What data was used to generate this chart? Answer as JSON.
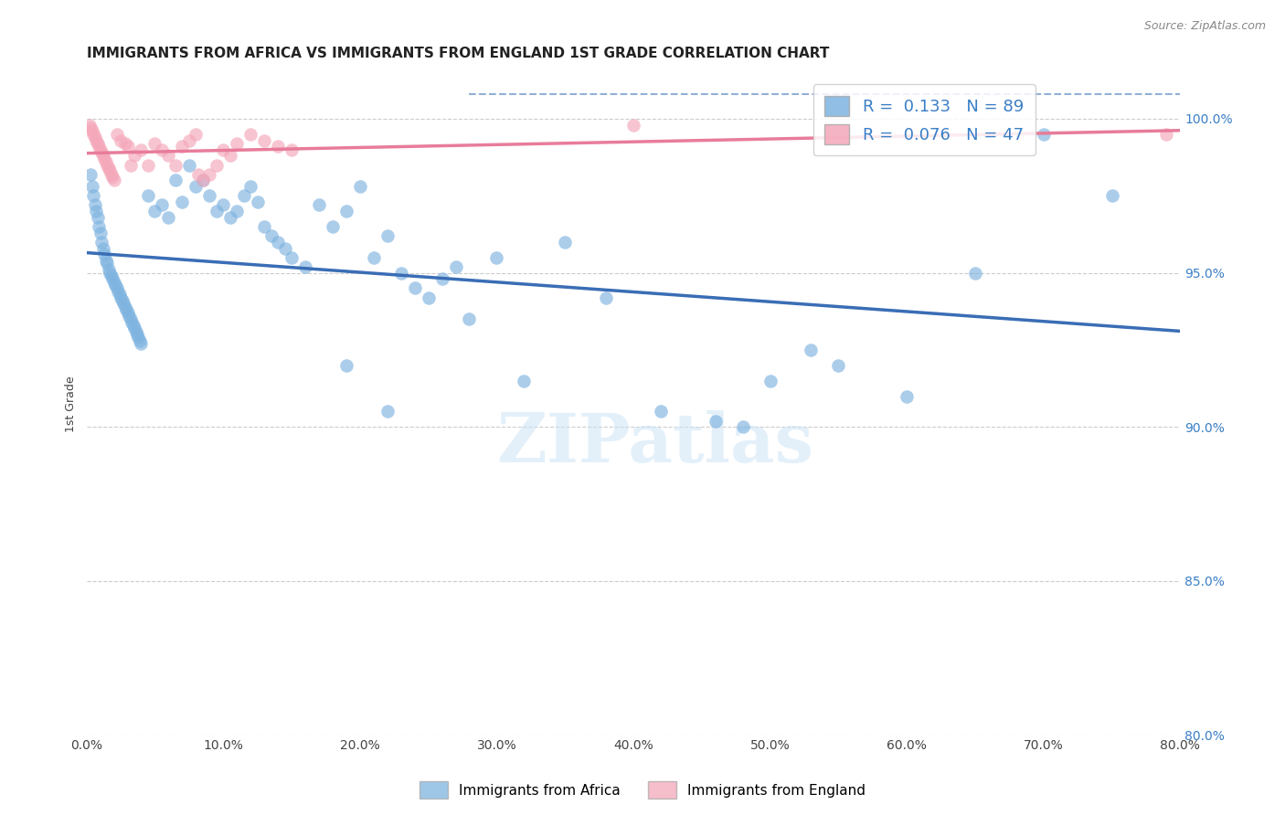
{
  "title": "IMMIGRANTS FROM AFRICA VS IMMIGRANTS FROM ENGLAND 1ST GRADE CORRELATION CHART",
  "source": "Source: ZipAtlas.com",
  "ylabel_left": "1st Grade",
  "x_tick_labels": [
    "0.0%",
    "10.0%",
    "20.0%",
    "30.0%",
    "40.0%",
    "50.0%",
    "60.0%",
    "70.0%",
    "80.0%"
  ],
  "y_tick_labels_right": [
    "100.0%",
    "95.0%",
    "90.0%",
    "85.0%",
    "80.0%"
  ],
  "xlim": [
    0.0,
    80.0
  ],
  "ylim": [
    80.0,
    101.5
  ],
  "legend_r_africa": "0.133",
  "legend_n_africa": "89",
  "legend_r_england": "0.076",
  "legend_n_england": "47",
  "legend_label_africa": "Immigrants from Africa",
  "legend_label_england": "Immigrants from England",
  "africa_color": "#7EB3E0",
  "england_color": "#F4A7B9",
  "africa_line_color": "#3A6DB5",
  "england_line_color": "#E87C9A",
  "title_fontsize": 11,
  "watermark_text": "ZIPatlas",
  "africa_x": [
    0.3,
    0.4,
    0.5,
    0.6,
    0.7,
    0.8,
    0.9,
    1.0,
    1.1,
    1.2,
    1.3,
    1.4,
    1.5,
    1.6,
    1.7,
    1.8,
    1.9,
    2.0,
    2.1,
    2.2,
    2.3,
    2.4,
    2.5,
    2.6,
    2.7,
    2.8,
    2.9,
    3.0,
    3.1,
    3.2,
    3.3,
    3.4,
    3.5,
    3.6,
    3.7,
    3.8,
    3.9,
    4.0,
    4.5,
    5.0,
    5.5,
    6.0,
    6.5,
    7.0,
    7.5,
    8.0,
    8.5,
    9.0,
    9.5,
    10.0,
    10.5,
    11.0,
    11.5,
    12.0,
    12.5,
    13.0,
    13.5,
    14.0,
    14.5,
    15.0,
    16.0,
    17.0,
    18.0,
    19.0,
    20.0,
    21.0,
    22.0,
    23.0,
    24.0,
    25.0,
    26.0,
    27.0,
    28.0,
    30.0,
    32.0,
    35.0,
    38.0,
    42.0,
    46.0,
    50.0,
    55.0,
    60.0,
    65.0,
    70.0,
    75.0,
    53.0,
    48.0,
    22.0,
    19.0
  ],
  "africa_y": [
    98.2,
    97.8,
    97.5,
    97.2,
    97.0,
    96.8,
    96.5,
    96.3,
    96.0,
    95.8,
    95.6,
    95.4,
    95.3,
    95.1,
    95.0,
    94.9,
    94.8,
    94.7,
    94.6,
    94.5,
    94.4,
    94.3,
    94.2,
    94.1,
    94.0,
    93.9,
    93.8,
    93.7,
    93.6,
    93.5,
    93.4,
    93.3,
    93.2,
    93.1,
    93.0,
    92.9,
    92.8,
    92.7,
    97.5,
    97.0,
    97.2,
    96.8,
    98.0,
    97.3,
    98.5,
    97.8,
    98.0,
    97.5,
    97.0,
    97.2,
    96.8,
    97.0,
    97.5,
    97.8,
    97.3,
    96.5,
    96.2,
    96.0,
    95.8,
    95.5,
    95.2,
    97.2,
    96.5,
    97.0,
    97.8,
    95.5,
    96.2,
    95.0,
    94.5,
    94.2,
    94.8,
    95.2,
    93.5,
    95.5,
    91.5,
    96.0,
    94.2,
    90.5,
    90.2,
    91.5,
    92.0,
    91.0,
    95.0,
    99.5,
    97.5,
    92.5,
    90.0,
    90.5,
    92.0
  ],
  "england_x": [
    0.2,
    0.3,
    0.4,
    0.5,
    0.6,
    0.7,
    0.8,
    0.9,
    1.0,
    1.1,
    1.2,
    1.3,
    1.4,
    1.5,
    1.6,
    1.7,
    1.8,
    1.9,
    2.0,
    2.2,
    2.5,
    2.8,
    3.0,
    3.5,
    4.0,
    4.5,
    5.0,
    5.5,
    6.0,
    6.5,
    7.0,
    7.5,
    8.0,
    8.5,
    9.0,
    9.5,
    10.0,
    10.5,
    11.0,
    12.0,
    13.0,
    14.0,
    15.0,
    3.2,
    8.2,
    40.0,
    79.0
  ],
  "england_y": [
    99.8,
    99.7,
    99.6,
    99.5,
    99.4,
    99.3,
    99.2,
    99.1,
    99.0,
    98.9,
    98.8,
    98.7,
    98.6,
    98.5,
    98.4,
    98.3,
    98.2,
    98.1,
    98.0,
    99.5,
    99.3,
    99.2,
    99.1,
    98.8,
    99.0,
    98.5,
    99.2,
    99.0,
    98.8,
    98.5,
    99.1,
    99.3,
    99.5,
    98.0,
    98.2,
    98.5,
    99.0,
    98.8,
    99.2,
    99.5,
    99.3,
    99.1,
    99.0,
    98.5,
    98.2,
    99.8,
    99.5
  ]
}
